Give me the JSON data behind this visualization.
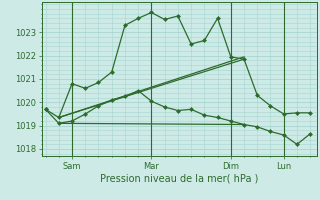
{
  "background_color": "#ceeae7",
  "grid_color": "#a8d5d0",
  "line_color": "#2d6b2d",
  "xlabel": "Pression niveau de la mer( hPa )",
  "ylim": [
    1017.7,
    1024.3
  ],
  "yticks": [
    1018,
    1019,
    1020,
    1021,
    1022,
    1023
  ],
  "xtick_labels": [
    "Sam",
    "Mar",
    "Dim",
    "Lun"
  ],
  "xtick_positions": [
    2,
    8,
    14,
    18
  ],
  "xlim": [
    -0.3,
    20.5
  ],
  "series1_x": [
    0,
    1,
    2,
    3,
    4,
    5,
    6,
    7,
    8,
    9,
    10,
    11,
    12,
    13,
    14,
    15,
    16,
    17,
    18,
    19,
    20
  ],
  "series1_y": [
    1019.7,
    1019.35,
    1020.8,
    1020.6,
    1020.85,
    1021.3,
    1023.3,
    1023.6,
    1023.85,
    1023.55,
    1023.7,
    1022.5,
    1022.65,
    1023.6,
    1021.95,
    1021.85,
    1020.3,
    1019.85,
    1019.5,
    1019.55,
    1019.55
  ],
  "series2_x": [
    0,
    1,
    2,
    3,
    4,
    5,
    6,
    7,
    8,
    9,
    10,
    11,
    12,
    13,
    14,
    15,
    16,
    17,
    18,
    19,
    20
  ],
  "series2_y": [
    1019.7,
    1019.1,
    1019.2,
    1019.5,
    1019.85,
    1020.1,
    1020.25,
    1020.5,
    1020.05,
    1019.8,
    1019.65,
    1019.7,
    1019.45,
    1019.35,
    1019.2,
    1019.05,
    1018.95,
    1018.75,
    1018.6,
    1018.2,
    1018.65
  ],
  "trend1_x": [
    1,
    15
  ],
  "trend1_y": [
    1019.35,
    1021.95
  ],
  "trend2_x": [
    1,
    15
  ],
  "trend2_y": [
    1019.35,
    1021.85
  ],
  "trend3_x": [
    1,
    15
  ],
  "trend3_y": [
    1019.1,
    1019.05
  ],
  "marker_size": 2.5,
  "linewidth": 0.9
}
